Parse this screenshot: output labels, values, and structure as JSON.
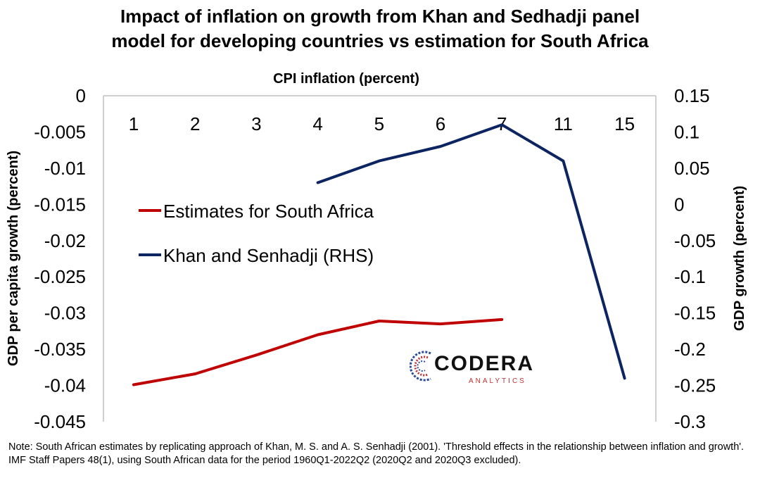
{
  "title_line1": "Impact of inflation on growth from Khan and Sedhadji panel",
  "title_line2": "model for developing countries vs estimation for South Africa",
  "note": "Note: South African estimates by replicating approach of Khan, M. S. and A. S. Senhadji (2001). 'Threshold effects in the relationship between inflation and growth'. IMF Staff Papers 48(1), using South African data for the period 1960Q1-2022Q2 (2020Q2 and 2020Q3 excluded).",
  "logo": {
    "word": "CODERA",
    "sub": "ANALYTICS"
  },
  "chart_data": {
    "type": "line",
    "xlabel": "CPI inflation (percent)",
    "ylabel_left": "GDP per capita growth (percent)",
    "ylabel_right": "GDP growth (percent)",
    "categories": [
      "1",
      "2",
      "3",
      "4",
      "5",
      "6",
      "7",
      "11",
      "15"
    ],
    "ylim_left": [
      -0.045,
      0
    ],
    "ylim_right": [
      -0.3,
      0.15
    ],
    "yticks_left": [
      "0",
      "-0.005",
      "-0.01",
      "-0.015",
      "-0.02",
      "-0.025",
      "-0.03",
      "-0.035",
      "-0.04",
      "-0.045"
    ],
    "yticks_right": [
      "0.15",
      "0.1",
      "0.05",
      "0",
      "-0.05",
      "-0.1",
      "-0.15",
      "-0.2",
      "-0.25",
      "-0.3"
    ],
    "legend_position": "center-left",
    "grid": false,
    "series": [
      {
        "name": "Estimates for South Africa",
        "axis": "left",
        "color": "#c00000",
        "values": [
          -0.0399,
          -0.0384,
          -0.0358,
          -0.033,
          -0.0311,
          -0.0315,
          -0.0309,
          null,
          null
        ]
      },
      {
        "name": "Khan and Senhadji (RHS)",
        "axis": "right",
        "color": "#0c2461",
        "values": [
          null,
          null,
          null,
          0.03,
          0.06,
          0.08,
          0.11,
          0.06,
          -0.24
        ]
      }
    ]
  }
}
